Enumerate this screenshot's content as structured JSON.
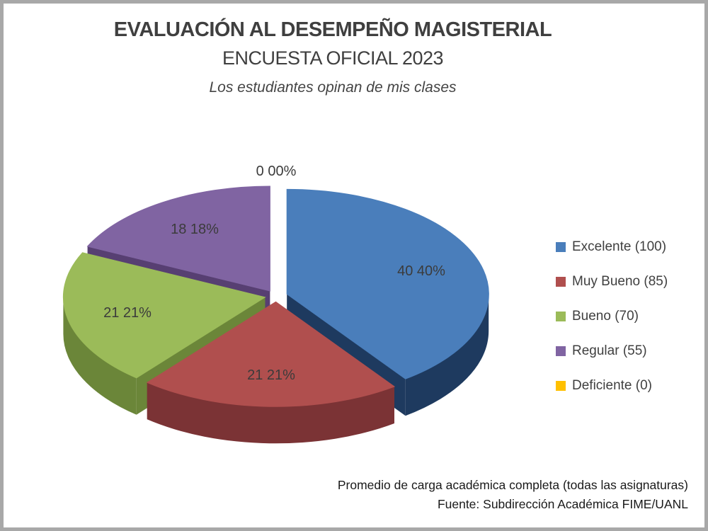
{
  "titles": {
    "line1": "EVALUACIÓN AL DESEMPEÑO MAGISTERIAL",
    "line2": "ENCUESTA OFICIAL 2023",
    "line3": "Los estudiantes opinan de mis clases"
  },
  "chart_data": {
    "type": "pie",
    "style": "3d-exploded",
    "categories": [
      "Excelente (100)",
      "Muy Bueno (85)",
      "Bueno (70)",
      "Regular (55)",
      "Deficiente (0)"
    ],
    "values": [
      40,
      21,
      21,
      18,
      0
    ],
    "data_labels": [
      "40 40%",
      "21 21%",
      "21 21%",
      "18 18%",
      "0 00%"
    ],
    "colors": [
      "#4A7EBB",
      "#B04F4E",
      "#9BBB59",
      "#8064A2",
      "#FFC000"
    ],
    "side_colors": [
      "#1E3A5F",
      "#7B3335",
      "#6B8639",
      "#573F72",
      "#B38600"
    ],
    "legend_position": "right",
    "start_angle_deg": 0,
    "clockwise": true
  },
  "footer": {
    "line1": "Promedio de carga académica completa (todas las asignaturas)",
    "line2": "Fuente: Subdirección Académica FIME/UANL"
  }
}
